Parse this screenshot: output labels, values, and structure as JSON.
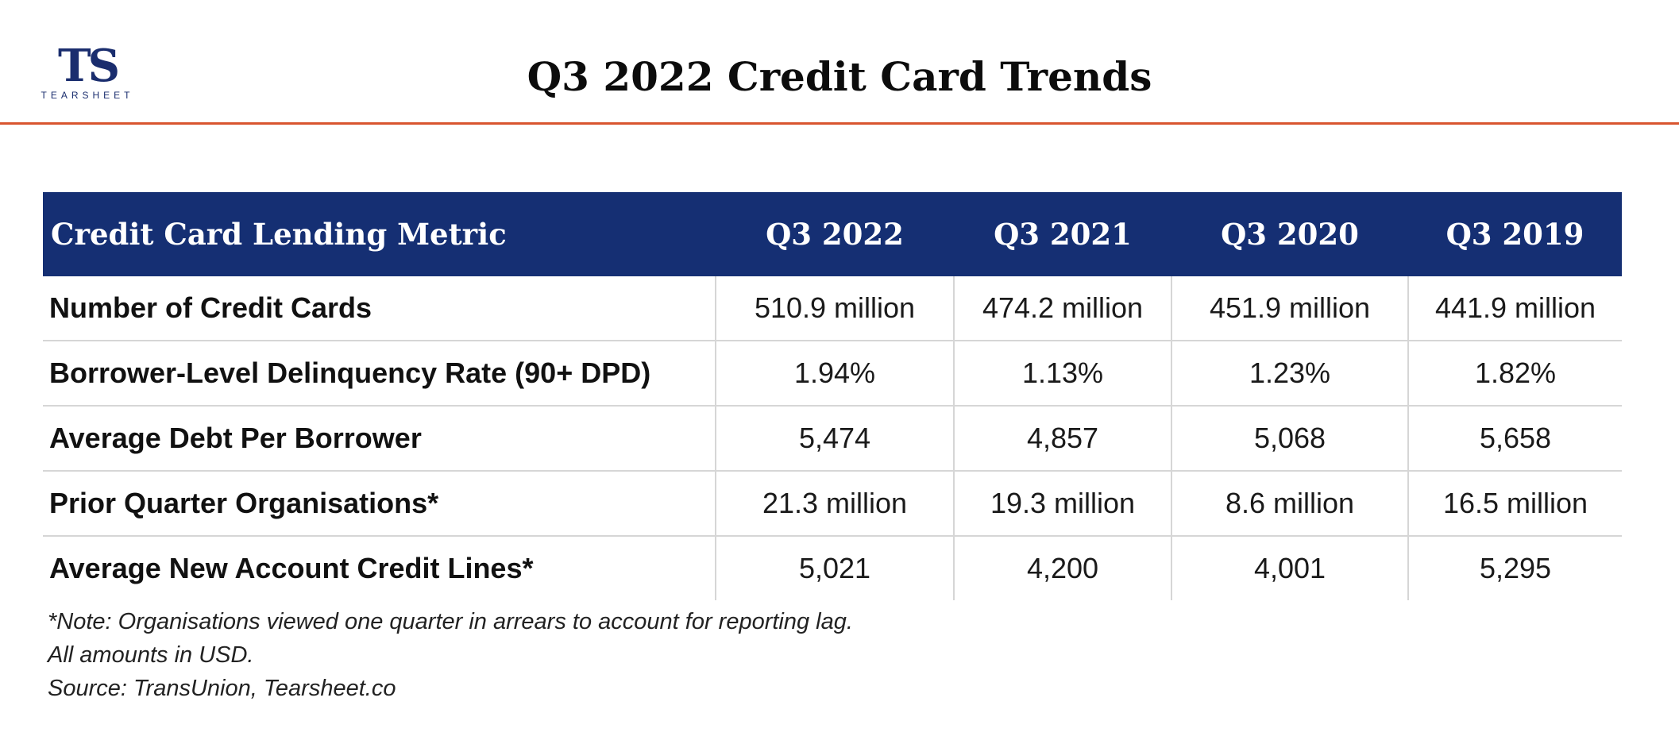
{
  "header": {
    "logo_mark": "TS",
    "logo_word": "TEARSHEET",
    "title": "Q3 2022 Credit Card Trends"
  },
  "colors": {
    "header_bg": "#152f73",
    "accent_line": "#d9552f",
    "logo": "#1a2d6e"
  },
  "chart_data": {
    "type": "table",
    "title": "Q3 2022 Credit Card Trends",
    "columns": [
      "Credit Card Lending Metric",
      "Q3 2022",
      "Q3 2021",
      "Q3 2020",
      "Q3 2019"
    ],
    "rows": [
      {
        "metric": "Number of Credit Cards",
        "values": [
          "510.9 million",
          "474.2 million",
          "451.9 million",
          "441.9 million"
        ]
      },
      {
        "metric": "Borrower-Level Delinquency Rate (90+ DPD)",
        "values": [
          "1.94%",
          "1.13%",
          "1.23%",
          "1.82%"
        ]
      },
      {
        "metric": "Average Debt Per Borrower",
        "values": [
          "5,474",
          "4,857",
          "5,068",
          "5,658"
        ]
      },
      {
        "metric": "Prior Quarter Organisations*",
        "values": [
          "21.3 million",
          "19.3 million",
          "8.6 million",
          "16.5 million"
        ]
      },
      {
        "metric": "Average New Account Credit Lines*",
        "values": [
          "5,021",
          "4,200",
          "4,001",
          "5,295"
        ]
      }
    ]
  },
  "notes": [
    "*Note: Organisations viewed one quarter in arrears to account for reporting lag.",
    "All amounts in USD.",
    "Source: TransUnion, Tearsheet.co"
  ]
}
